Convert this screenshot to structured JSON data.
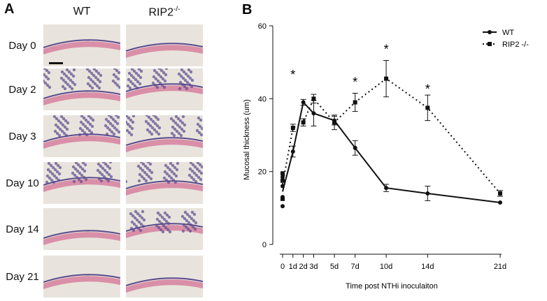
{
  "panel_a": {
    "letter": "A",
    "col_labels": {
      "wt": "WT",
      "ko_base": "RIP2",
      "ko_sup": "-/-"
    },
    "rows": [
      "Day 0",
      "Day 2",
      "Day 3",
      "Day 10",
      "Day 14",
      "Day 21"
    ]
  },
  "panel_b": {
    "letter": "B"
  },
  "colors": {
    "line": "#111111",
    "tissue_pink": "#d98fa8",
    "tissue_purple": "#5a4a8c",
    "bg_tile": "#e8e4dd"
  },
  "chart_data": {
    "type": "line",
    "xlabel": "Time post NTHi inoculaiton",
    "ylabel": "Mucosal thickness (um)",
    "ylim": [
      0,
      60
    ],
    "yticks": [
      "0",
      "20",
      "40",
      "60"
    ],
    "x_ticks": [
      {
        "x": 0,
        "label": "0"
      },
      {
        "x": 1,
        "label": "1d"
      },
      {
        "x": 2,
        "label": "2d"
      },
      {
        "x": 3,
        "label": "3d"
      },
      {
        "x": 5,
        "label": "5d"
      },
      {
        "x": 7,
        "label": "7d"
      },
      {
        "x": 10,
        "label": "10d"
      },
      {
        "x": 14,
        "label": "14d"
      },
      {
        "x": 21,
        "label": "21d"
      }
    ],
    "legend_position": "top-right",
    "series": [
      {
        "name": "WT",
        "style": "solid",
        "marker": "circle",
        "points": [
          {
            "x": 0,
            "y": 10.5,
            "err": 0
          },
          {
            "x": 0,
            "y": 13,
            "err": 0
          },
          {
            "x": 0,
            "y": 16,
            "err": 0
          },
          {
            "x": 0,
            "y": 18.5,
            "err": 0
          },
          {
            "x": 1,
            "y": 25.5,
            "err": 1.5
          },
          {
            "x": 2,
            "y": 39,
            "err": 0.8
          },
          {
            "x": 3,
            "y": 36,
            "err": 3.5
          },
          {
            "x": 5,
            "y": 34,
            "err": 1.2
          },
          {
            "x": 7,
            "y": 26.5,
            "err": 2
          },
          {
            "x": 10,
            "y": 15.5,
            "err": 1
          },
          {
            "x": 14,
            "y": 14,
            "err": 2
          },
          {
            "x": 21,
            "y": 11.5,
            "err": 0
          }
        ]
      },
      {
        "name": "RIP2 -/-",
        "style": "dotted",
        "marker": "square",
        "points": [
          {
            "x": 0,
            "y": 12.5,
            "err": 0
          },
          {
            "x": 0,
            "y": 17.5,
            "err": 0
          },
          {
            "x": 0,
            "y": 19.5,
            "err": 0
          },
          {
            "x": 1,
            "y": 32,
            "err": 1
          },
          {
            "x": 2,
            "y": 33.5,
            "err": 1
          },
          {
            "x": 3,
            "y": 40,
            "err": 1.2
          },
          {
            "x": 5,
            "y": 33.5,
            "err": 2
          },
          {
            "x": 7,
            "y": 39,
            "err": 2.5
          },
          {
            "x": 10,
            "y": 45.5,
            "err": 5
          },
          {
            "x": 14,
            "y": 37.5,
            "err": 3.5
          },
          {
            "x": 21,
            "y": 14,
            "err": 0.8
          }
        ]
      }
    ],
    "annotations": [
      {
        "text": "*",
        "x": 1,
        "y": 47
      },
      {
        "text": "*",
        "x": 7,
        "y": 45
      },
      {
        "text": "*",
        "x": 10,
        "y": 54
      },
      {
        "text": "*",
        "x": 14,
        "y": 43
      }
    ]
  }
}
